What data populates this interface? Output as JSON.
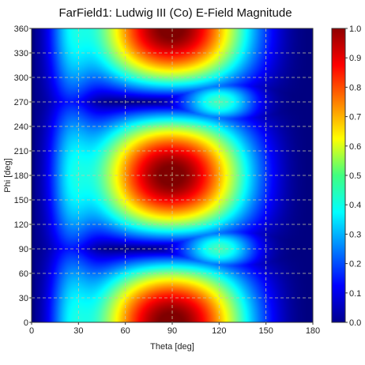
{
  "chart_data": {
    "type": "heatmap",
    "title": "FarField1: Ludwig III (Co) E-Field Magnitude",
    "xlabel": "Theta [deg]",
    "ylabel": "Phi [deg]",
    "xlim": [
      0,
      180
    ],
    "ylim": [
      0,
      360
    ],
    "x_ticks": [
      "0",
      "30",
      "60",
      "90",
      "120",
      "150",
      "180"
    ],
    "y_ticks": [
      "0",
      "30",
      "60",
      "90",
      "120",
      "150",
      "180",
      "210",
      "240",
      "270",
      "300",
      "330",
      "360"
    ],
    "colorbar": {
      "min": 0,
      "max": 1,
      "ticks": [
        "0.0",
        "0.1",
        "0.2",
        "0.3",
        "0.4",
        "0.5",
        "0.6",
        "0.7",
        "0.8",
        "0.9",
        "1.0"
      ],
      "colormap": "jet"
    },
    "grid": true,
    "grid_style": "dashed",
    "grid_color": "#c8c8a0",
    "peaks": [
      {
        "theta": 90,
        "phi": 0,
        "value": 0.9
      },
      {
        "theta": 85,
        "phi": 180,
        "value": 1.0
      },
      {
        "theta": 95,
        "phi": 350,
        "value": 0.95
      },
      {
        "theta": 130,
        "phi": 60,
        "value": 0.6
      },
      {
        "theta": 130,
        "phi": 120,
        "value": 0.6
      },
      {
        "theta": 130,
        "phi": 240,
        "value": 0.6
      },
      {
        "theta": 130,
        "phi": 300,
        "value": 0.6
      }
    ]
  }
}
